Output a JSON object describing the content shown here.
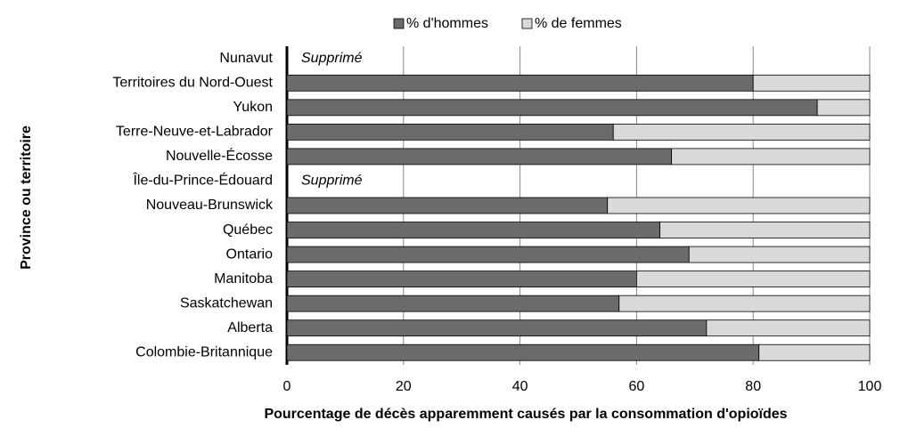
{
  "chart_data": {
    "type": "bar",
    "orientation": "horizontal",
    "stacked": true,
    "x_label": "Pourcentage de décès apparemment causés par la consommation d'opioïdes",
    "y_label": "Province ou territoire",
    "categories": [
      "Nunavut",
      "Territoires du Nord-Ouest",
      "Yukon",
      "Terre-Neuve-et-Labrador",
      "Nouvelle-Écosse",
      "Île-du-Prince-Édouard",
      "Nouveau-Brunswick",
      "Québec",
      "Ontario",
      "Manitoba",
      "Saskatchewan",
      "Alberta",
      "Colombie-Britannique"
    ],
    "annotations": [
      "Supprimé",
      null,
      null,
      null,
      null,
      "Supprimé",
      null,
      null,
      null,
      null,
      null,
      null,
      null
    ],
    "series": [
      {
        "name": "% d'hommes",
        "color": "#6b6b6b",
        "values": [
          null,
          80,
          91,
          56,
          66,
          null,
          55,
          64,
          69,
          60,
          57,
          72,
          81
        ]
      },
      {
        "name": "% de femmes",
        "color": "#d9d9d9",
        "values": [
          null,
          20,
          9,
          44,
          34,
          null,
          45,
          36,
          31,
          40,
          43,
          28,
          19
        ]
      }
    ],
    "xlim": [
      0,
      100
    ],
    "xticks": [
      0,
      20,
      40,
      60,
      80,
      100
    ],
    "grid": true,
    "legend": "top"
  }
}
